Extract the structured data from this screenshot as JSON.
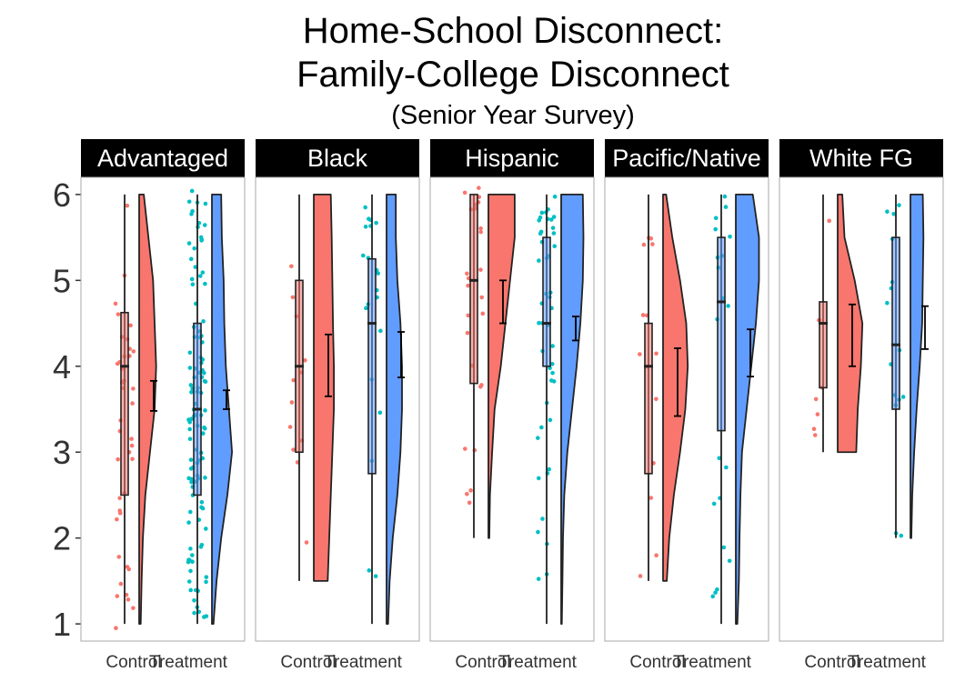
{
  "title_line1": "Home-School Disconnect:",
  "title_line2": "Family-College Disconnect",
  "subtitle": "(Senior Year Survey)",
  "colors": {
    "control_fill": "#F8766D",
    "treatment_fill": "#619CFF",
    "control_points": "#F8766D",
    "treatment_points": "#00BFC4",
    "outline": "#222222",
    "strip_bg": "#000000",
    "strip_text": "#ffffff",
    "panel_border": "#aaaaaa"
  },
  "chart_data": {
    "type": "raincloud",
    "ylim": [
      0.8,
      6.2
    ],
    "y_ticks": [
      "1",
      "2",
      "3",
      "4",
      "5",
      "6"
    ],
    "x_tick_labels": [
      "Control",
      "Treatment"
    ],
    "facets": [
      {
        "label": "Advantaged",
        "groups": [
          {
            "name": "Control",
            "box": {
              "min": 1.0,
              "q1": 2.5,
              "median": 4.0,
              "q3": 4.625,
              "max": 6.0
            },
            "mean": 3.65,
            "ci": [
              3.48,
              3.83
            ],
            "density": [
              [
                1,
                0.05
              ],
              [
                1.5,
                0.08
              ],
              [
                2,
                0.12
              ],
              [
                2.5,
                0.2
              ],
              [
                3,
                0.35
              ],
              [
                3.5,
                0.5
              ],
              [
                4,
                0.55
              ],
              [
                4.5,
                0.5
              ],
              [
                5,
                0.45
              ],
              [
                5.5,
                0.3
              ],
              [
                6,
                0.15
              ]
            ]
          },
          {
            "name": "Treatment",
            "box": {
              "min": 1.0,
              "q1": 2.5,
              "median": 3.5,
              "q3": 4.5,
              "max": 6.0
            },
            "mean": 3.6,
            "ci": [
              3.5,
              3.72
            ],
            "density": [
              [
                1,
                0.05
              ],
              [
                1.5,
                0.15
              ],
              [
                2,
                0.3
              ],
              [
                2.5,
                0.5
              ],
              [
                3,
                0.65
              ],
              [
                3.5,
                0.55
              ],
              [
                4,
                0.45
              ],
              [
                4.5,
                0.4
              ],
              [
                5,
                0.38
              ],
              [
                5.5,
                0.32
              ],
              [
                6,
                0.3
              ]
            ]
          }
        ]
      },
      {
        "label": "Black",
        "groups": [
          {
            "name": "Control",
            "box": {
              "min": 1.5,
              "q1": 3.0,
              "median": 4.0,
              "q3": 5.0,
              "max": 6.0
            },
            "mean": 4.0,
            "ci": [
              3.65,
              4.37
            ],
            "density": [
              [
                1.5,
                0.45
              ],
              [
                2,
                0.5
              ],
              [
                2.5,
                0.55
              ],
              [
                3,
                0.6
              ],
              [
                3.5,
                0.65
              ],
              [
                4,
                0.65
              ],
              [
                4.5,
                0.62
              ],
              [
                5,
                0.6
              ],
              [
                5.5,
                0.58
              ],
              [
                6,
                0.55
              ]
            ]
          },
          {
            "name": "Treatment",
            "box": {
              "min": 1.0,
              "q1": 2.75,
              "median": 4.5,
              "q3": 5.25,
              "max": 6.0
            },
            "mean": 4.12,
            "ci": [
              3.87,
              4.4
            ],
            "density": [
              [
                1,
                0.05
              ],
              [
                1.5,
                0.1
              ],
              [
                2,
                0.2
              ],
              [
                2.5,
                0.35
              ],
              [
                3,
                0.45
              ],
              [
                3.5,
                0.5
              ],
              [
                4,
                0.5
              ],
              [
                4.5,
                0.45
              ],
              [
                5,
                0.35
              ],
              [
                5.5,
                0.3
              ],
              [
                6,
                0.3
              ]
            ]
          }
        ]
      },
      {
        "label": "Hispanic",
        "groups": [
          {
            "name": "Control",
            "box": {
              "min": 2.0,
              "q1": 3.8,
              "median": 5.0,
              "q3": 6.0,
              "max": 6.0
            },
            "mean": 4.75,
            "ci": [
              4.5,
              5.0
            ],
            "density": [
              [
                2,
                0.03
              ],
              [
                2.5,
                0.05
              ],
              [
                3,
                0.12
              ],
              [
                3.5,
                0.2
              ],
              [
                4,
                0.4
              ],
              [
                4.5,
                0.55
              ],
              [
                5,
                0.7
              ],
              [
                5.5,
                0.85
              ],
              [
                6,
                0.85
              ]
            ]
          },
          {
            "name": "Treatment",
            "box": {
              "min": 1.0,
              "q1": 4.0,
              "median": 4.5,
              "q3": 5.5,
              "max": 6.0
            },
            "mean": 4.45,
            "ci": [
              4.3,
              4.58
            ],
            "density": [
              [
                1,
                0.02
              ],
              [
                1.5,
                0.04
              ],
              [
                2,
                0.06
              ],
              [
                2.5,
                0.1
              ],
              [
                3,
                0.2
              ],
              [
                3.5,
                0.35
              ],
              [
                4,
                0.5
              ],
              [
                4.5,
                0.62
              ],
              [
                5,
                0.7
              ],
              [
                5.5,
                0.72
              ],
              [
                6,
                0.7
              ]
            ]
          }
        ]
      },
      {
        "label": "Pacific/Native",
        "groups": [
          {
            "name": "Control",
            "box": {
              "min": 1.5,
              "q1": 2.75,
              "median": 4.0,
              "q3": 4.5,
              "max": 6.0
            },
            "mean": 3.82,
            "ci": [
              3.42,
              4.21
            ],
            "density": [
              [
                1.5,
                0.12
              ],
              [
                2,
                0.2
              ],
              [
                2.5,
                0.35
              ],
              [
                3,
                0.55
              ],
              [
                3.5,
                0.72
              ],
              [
                4,
                0.8
              ],
              [
                4.5,
                0.75
              ],
              [
                5,
                0.55
              ],
              [
                5.5,
                0.3
              ],
              [
                6,
                0.1
              ]
            ]
          },
          {
            "name": "Treatment",
            "box": {
              "min": 1.0,
              "q1": 3.25,
              "median": 4.75,
              "q3": 5.5,
              "max": 6.0
            },
            "mean": 4.15,
            "ci": [
              3.88,
              4.43
            ],
            "density": [
              [
                1,
                0.05
              ],
              [
                1.5,
                0.1
              ],
              [
                2,
                0.12
              ],
              [
                2.5,
                0.15
              ],
              [
                3,
                0.2
              ],
              [
                3.5,
                0.35
              ],
              [
                4,
                0.5
              ],
              [
                4.5,
                0.65
              ],
              [
                5,
                0.75
              ],
              [
                5.5,
                0.75
              ],
              [
                6,
                0.55
              ]
            ]
          }
        ]
      },
      {
        "label": "White FG",
        "groups": [
          {
            "name": "Control",
            "box": {
              "min": 3.0,
              "q1": 3.75,
              "median": 4.5,
              "q3": 4.75,
              "max": 6.0
            },
            "mean": 4.37,
            "ci": [
              4.0,
              4.72
            ],
            "density": [
              [
                3,
                0.6
              ],
              [
                3.5,
                0.65
              ],
              [
                4,
                0.75
              ],
              [
                4.5,
                0.8
              ],
              [
                5,
                0.55
              ],
              [
                5.5,
                0.22
              ],
              [
                6,
                0.15
              ]
            ]
          },
          {
            "name": "Treatment",
            "box": {
              "min": 2.0,
              "q1": 3.5,
              "median": 4.25,
              "q3": 5.5,
              "max": 6.0
            },
            "mean": 4.45,
            "ci": [
              4.2,
              4.7
            ],
            "density": [
              [
                2,
                0.03
              ],
              [
                2.5,
                0.06
              ],
              [
                3,
                0.12
              ],
              [
                3.5,
                0.2
              ],
              [
                4,
                0.3
              ],
              [
                4.5,
                0.38
              ],
              [
                5,
                0.4
              ],
              [
                5.5,
                0.42
              ],
              [
                6,
                0.4
              ]
            ]
          }
        ]
      }
    ]
  }
}
